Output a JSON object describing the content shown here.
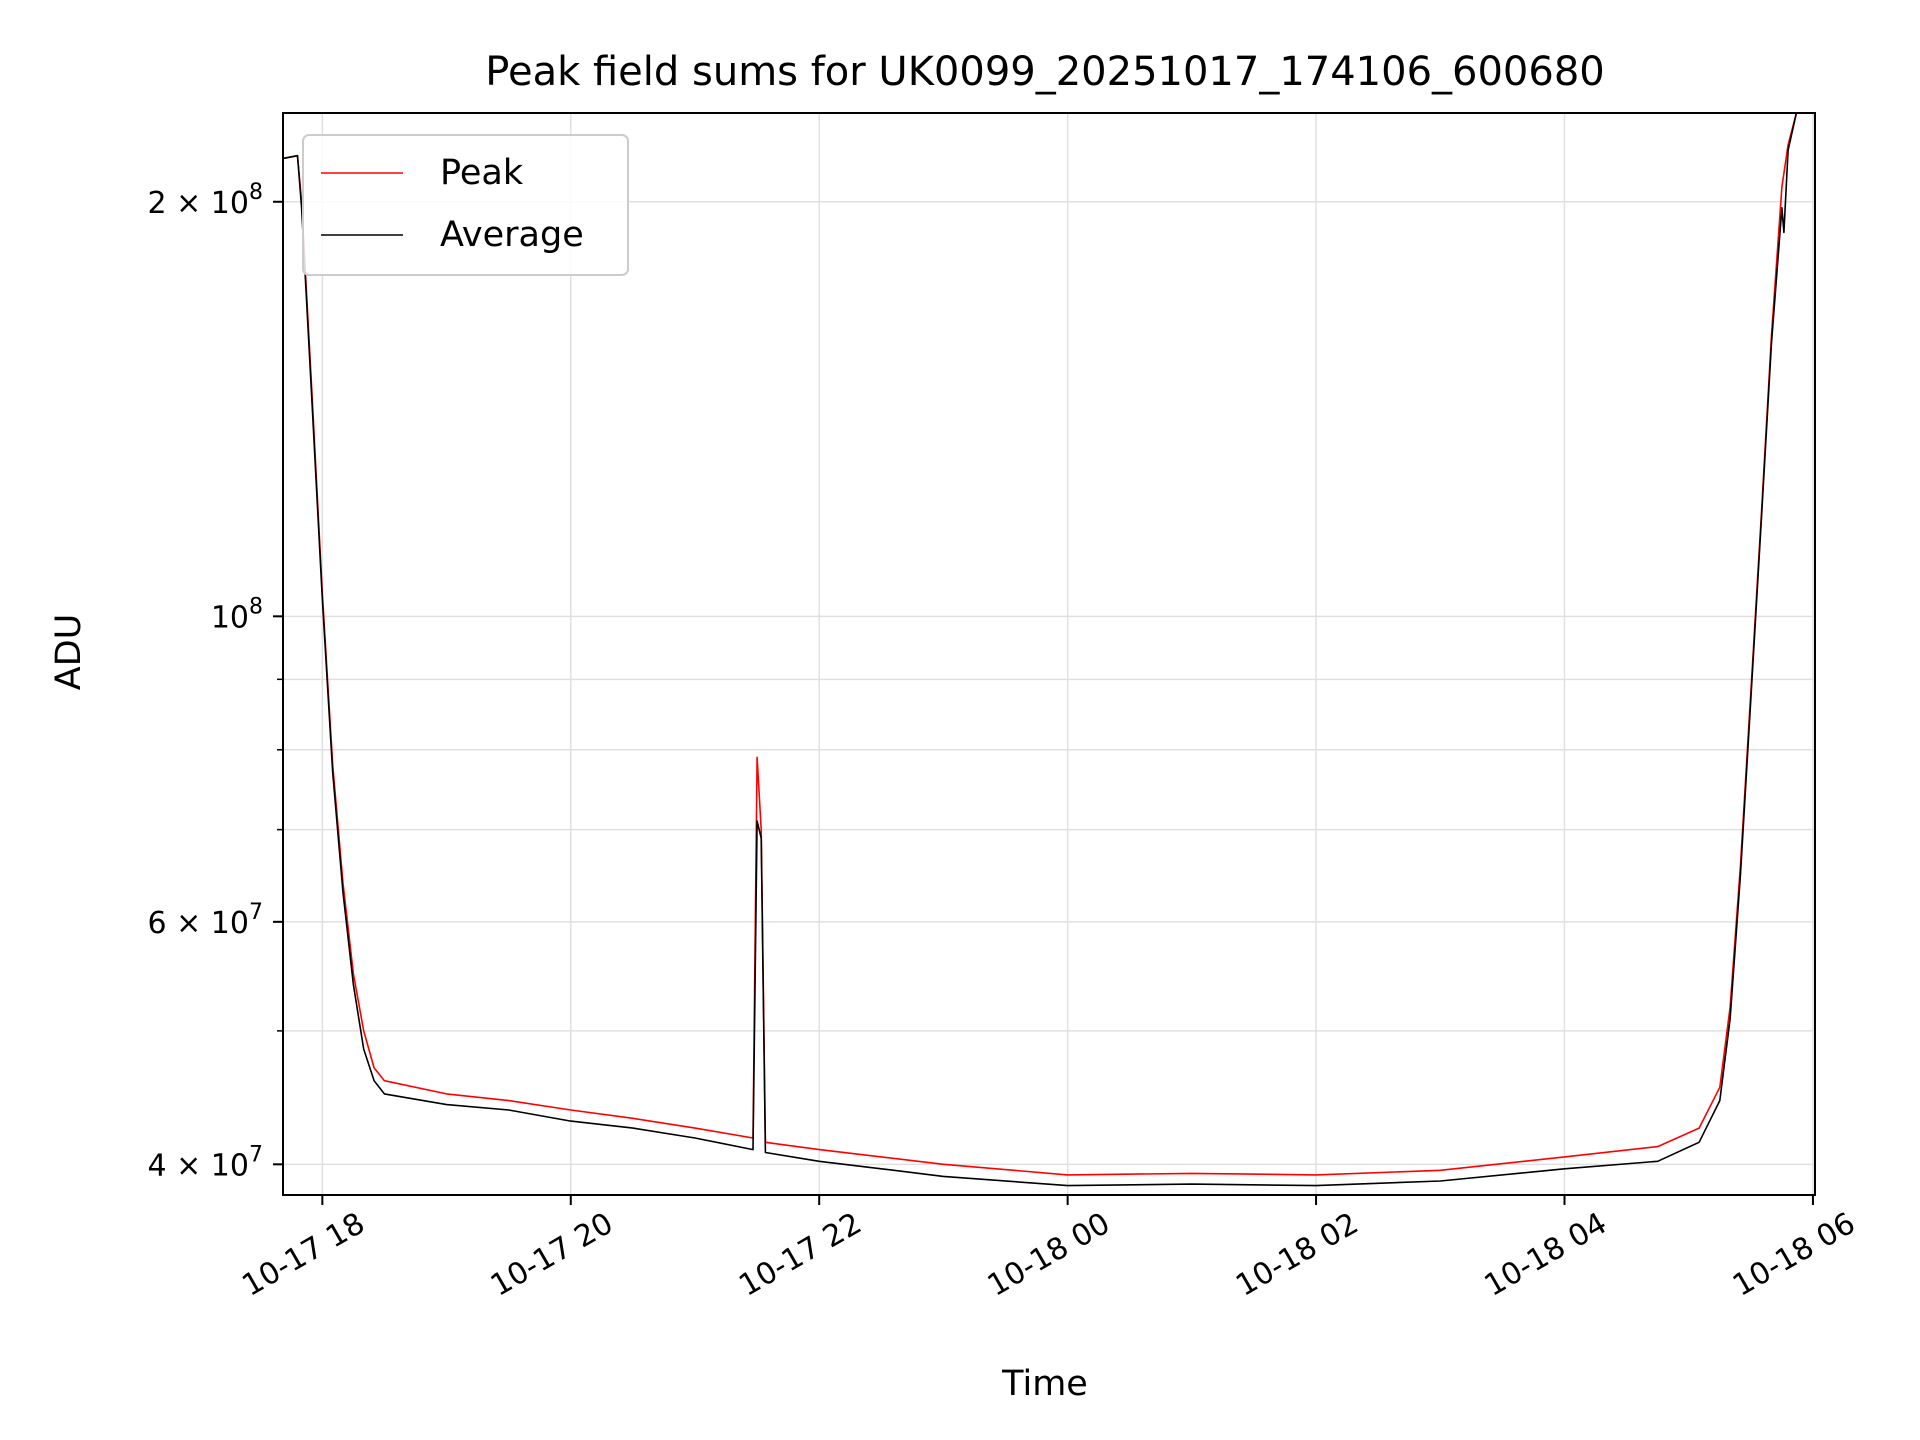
{
  "chart_data": {
    "type": "line",
    "title": "Peak field sums for UK0099_20251017_174106_600680",
    "xlabel": "Time",
    "ylabel": "ADU",
    "yscale": "log",
    "xlim": [
      "2025-10-17 17:41",
      "2025-10-18 06:01"
    ],
    "ylim": [
      38000000,
      232000000
    ],
    "grid": true,
    "legend": "upper left",
    "x_ticks": [
      {
        "value": "2025-10-17 18:00",
        "label": "10-17 18"
      },
      {
        "value": "2025-10-17 20:00",
        "label": "10-17 20"
      },
      {
        "value": "2025-10-17 22:00",
        "label": "10-17 22"
      },
      {
        "value": "2025-10-18 00:00",
        "label": "10-18 00"
      },
      {
        "value": "2025-10-18 02:00",
        "label": "10-18 02"
      },
      {
        "value": "2025-10-18 04:00",
        "label": "10-18 04"
      },
      {
        "value": "2025-10-18 06:00",
        "label": "10-18 06"
      }
    ],
    "y_ticks": [
      {
        "value": 200000000,
        "base": "2",
        "exp": "8"
      },
      {
        "value": 100000000,
        "base": "",
        "exp": "8"
      },
      {
        "value": 60000000,
        "base": "6",
        "exp": "7"
      },
      {
        "value": 40000000,
        "base": "4",
        "exp": "7"
      }
    ],
    "y_minor_ticks": [
      40000000,
      50000000,
      60000000,
      70000000,
      80000000,
      90000000,
      100000000,
      200000000
    ],
    "series": [
      {
        "name": "Peak",
        "color": "#ff0000",
        "points": [
          [
            "2025-10-17 17:41",
            215000000
          ],
          [
            "2025-10-17 17:48",
            216000000
          ],
          [
            "2025-10-17 17:50",
            200000000
          ],
          [
            "2025-10-17 17:55",
            145000000
          ],
          [
            "2025-10-17 18:00",
            104000000
          ],
          [
            "2025-10-17 18:05",
            78000000
          ],
          [
            "2025-10-17 18:10",
            64000000
          ],
          [
            "2025-10-17 18:15",
            55000000
          ],
          [
            "2025-10-17 18:20",
            50000000
          ],
          [
            "2025-10-17 18:25",
            47000000
          ],
          [
            "2025-10-17 18:30",
            46000000
          ],
          [
            "2025-10-17 19:00",
            45000000
          ],
          [
            "2025-10-17 19:30",
            44500000
          ],
          [
            "2025-10-17 20:00",
            43800000
          ],
          [
            "2025-10-17 20:30",
            43200000
          ],
          [
            "2025-10-17 21:00",
            42500000
          ],
          [
            "2025-10-17 21:28",
            41800000
          ],
          [
            "2025-10-17 21:30",
            79000000
          ],
          [
            "2025-10-17 21:32",
            70000000
          ],
          [
            "2025-10-17 21:34",
            41500000
          ],
          [
            "2025-10-17 22:00",
            41000000
          ],
          [
            "2025-10-17 22:30",
            40500000
          ],
          [
            "2025-10-17 23:00",
            40000000
          ],
          [
            "2025-10-18 00:00",
            39300000
          ],
          [
            "2025-10-18 01:00",
            39400000
          ],
          [
            "2025-10-18 02:00",
            39300000
          ],
          [
            "2025-10-18 03:00",
            39600000
          ],
          [
            "2025-10-18 04:00",
            40500000
          ],
          [
            "2025-10-18 04:45",
            41200000
          ],
          [
            "2025-10-18 05:05",
            42500000
          ],
          [
            "2025-10-18 05:15",
            45500000
          ],
          [
            "2025-10-18 05:20",
            52000000
          ],
          [
            "2025-10-18 05:25",
            66000000
          ],
          [
            "2025-10-18 05:30",
            88000000
          ],
          [
            "2025-10-18 05:35",
            118000000
          ],
          [
            "2025-10-18 05:40",
            160000000
          ],
          [
            "2025-10-18 05:45",
            205000000
          ],
          [
            "2025-10-18 05:48",
            220000000
          ],
          [
            "2025-10-18 05:52",
            232000000
          ],
          [
            "2025-10-18 05:59",
            232000000
          ]
        ]
      },
      {
        "name": "Average",
        "color": "#000000",
        "points": [
          [
            "2025-10-17 17:41",
            215000000
          ],
          [
            "2025-10-17 17:48",
            216000000
          ],
          [
            "2025-10-17 17:50",
            198000000
          ],
          [
            "2025-10-17 17:55",
            143000000
          ],
          [
            "2025-10-17 18:00",
            103000000
          ],
          [
            "2025-10-17 18:05",
            77000000
          ],
          [
            "2025-10-17 18:10",
            63000000
          ],
          [
            "2025-10-17 18:15",
            54000000
          ],
          [
            "2025-10-17 18:20",
            48500000
          ],
          [
            "2025-10-17 18:25",
            46000000
          ],
          [
            "2025-10-17 18:30",
            45000000
          ],
          [
            "2025-10-17 19:00",
            44200000
          ],
          [
            "2025-10-17 19:30",
            43800000
          ],
          [
            "2025-10-17 20:00",
            43000000
          ],
          [
            "2025-10-17 20:30",
            42500000
          ],
          [
            "2025-10-17 21:00",
            41800000
          ],
          [
            "2025-10-17 21:28",
            41000000
          ],
          [
            "2025-10-17 21:30",
            71000000
          ],
          [
            "2025-10-17 21:32",
            69000000
          ],
          [
            "2025-10-17 21:34",
            40800000
          ],
          [
            "2025-10-17 22:00",
            40200000
          ],
          [
            "2025-10-17 22:30",
            39700000
          ],
          [
            "2025-10-17 23:00",
            39200000
          ],
          [
            "2025-10-18 00:00",
            38600000
          ],
          [
            "2025-10-18 01:00",
            38700000
          ],
          [
            "2025-10-18 02:00",
            38600000
          ],
          [
            "2025-10-18 03:00",
            38900000
          ],
          [
            "2025-10-18 04:00",
            39700000
          ],
          [
            "2025-10-18 04:45",
            40200000
          ],
          [
            "2025-10-18 05:05",
            41500000
          ],
          [
            "2025-10-18 05:15",
            44500000
          ],
          [
            "2025-10-18 05:20",
            51000000
          ],
          [
            "2025-10-18 05:25",
            65000000
          ],
          [
            "2025-10-18 05:30",
            87000000
          ],
          [
            "2025-10-18 05:35",
            117000000
          ],
          [
            "2025-10-18 05:40",
            158000000
          ],
          [
            "2025-10-18 05:45",
            198000000
          ],
          [
            "2025-10-18 05:46",
            190000000
          ],
          [
            "2025-10-18 05:48",
            218000000
          ],
          [
            "2025-10-18 05:52",
            232000000
          ],
          [
            "2025-10-18 05:59",
            232000000
          ]
        ]
      }
    ]
  }
}
